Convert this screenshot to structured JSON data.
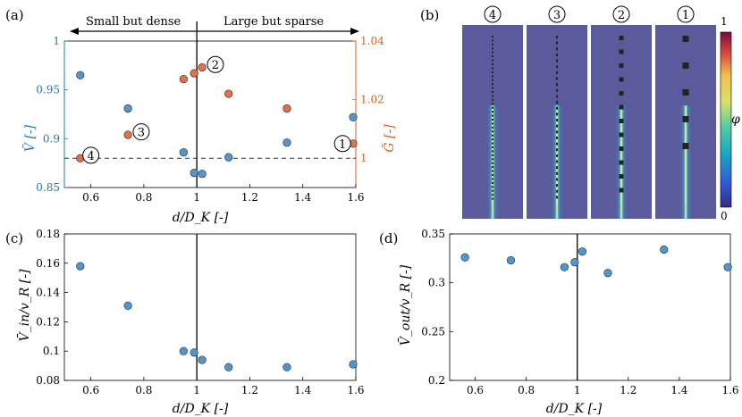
{
  "colors": {
    "blue": "#4f97cc",
    "blue_axis": "#1f77b4",
    "orange": "#e0714a",
    "orange_axis": "#e0601d",
    "panel_bg": "#5a5b9c",
    "dashed": "#333333"
  },
  "chart_data": [
    {
      "panel": "(a)",
      "type": "scatter",
      "top_labels": {
        "left": "Small but dense",
        "right": "Large but sparse"
      },
      "xlabel": "d/D_K [-]",
      "ylabel_left": "Ṽ [-]",
      "ylabel_right": "G̃ [-]",
      "xlim": [
        0.5,
        1.6
      ],
      "ylim_left": [
        0.85,
        1.0
      ],
      "ylim_right": [
        0.99,
        1.04
      ],
      "xticks": [
        "0.6",
        "0.8",
        "1",
        "1.2",
        "1.4",
        "1.6"
      ],
      "yticks_left": [
        "0.85",
        "0.9",
        "0.95",
        "1"
      ],
      "yticks_right": [
        "1",
        "1.02",
        "1.04"
      ],
      "vline_x": 1.0,
      "hline_y_right": 1.0,
      "series": [
        {
          "axis": "left",
          "color": "blue",
          "x": [
            0.56,
            0.74,
            0.95,
            0.99,
            1.02,
            1.12,
            1.34,
            1.59
          ],
          "y": [
            0.965,
            0.931,
            0.886,
            0.865,
            0.864,
            0.881,
            0.896,
            0.922
          ]
        },
        {
          "axis": "right",
          "color": "orange",
          "x": [
            0.56,
            0.74,
            0.95,
            0.99,
            1.02,
            1.12,
            1.34,
            1.59
          ],
          "y": [
            1.0,
            1.008,
            1.027,
            1.029,
            1.031,
            1.022,
            1.017,
            1.005
          ]
        }
      ],
      "markers": [
        {
          "label": "4",
          "x": 0.6,
          "y": 1.001
        },
        {
          "label": "3",
          "x": 0.79,
          "y": 1.009
        },
        {
          "label": "2",
          "x": 1.07,
          "y": 1.032
        },
        {
          "label": "1",
          "x": 1.55,
          "y": 1.005
        }
      ]
    },
    {
      "panel": "(b)",
      "type": "heatmap",
      "column_labels": [
        "4",
        "3",
        "2",
        "1"
      ],
      "colorbar": {
        "min": "0",
        "max": "1",
        "label": "φ"
      }
    },
    {
      "panel": "(c)",
      "type": "scatter",
      "xlabel": "d/D_K [-]",
      "ylabel": "V̄_in/v_R [-]",
      "xlim": [
        0.5,
        1.6
      ],
      "ylim": [
        0.08,
        0.18
      ],
      "xticks": [
        "0.6",
        "0.8",
        "1",
        "1.2",
        "1.4",
        "1.6"
      ],
      "yticks": [
        "0.08",
        "0.1",
        "0.12",
        "0.14",
        "0.16",
        "0.18"
      ],
      "vline_x": 1.0,
      "x": [
        0.56,
        0.74,
        0.95,
        0.99,
        1.02,
        1.12,
        1.34,
        1.59
      ],
      "y": [
        0.158,
        0.131,
        0.1,
        0.099,
        0.094,
        0.089,
        0.089,
        0.091
      ]
    },
    {
      "panel": "(d)",
      "type": "scatter",
      "xlabel": "d/D_K [-]",
      "ylabel": "V̄_out/v_R [-]",
      "xlim": [
        0.5,
        1.6
      ],
      "ylim": [
        0.2,
        0.35
      ],
      "xticks": [
        "0.6",
        "0.8",
        "1",
        "1.2",
        "1.4",
        "1.6"
      ],
      "yticks": [
        "0.2",
        "0.25",
        "0.3",
        "0.35"
      ],
      "vline_x": 1.0,
      "x": [
        0.56,
        0.74,
        0.95,
        0.99,
        1.02,
        1.12,
        1.34,
        1.59
      ],
      "y": [
        0.326,
        0.323,
        0.316,
        0.321,
        0.332,
        0.31,
        0.334,
        0.316
      ]
    }
  ]
}
